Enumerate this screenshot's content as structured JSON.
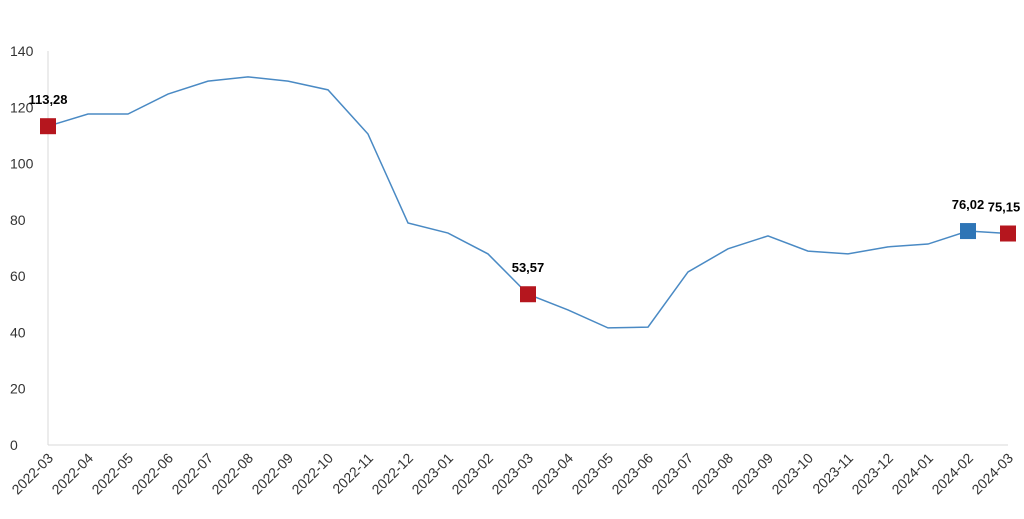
{
  "chart_data": {
    "type": "line",
    "categories": [
      "2022-03",
      "2022-04",
      "2022-05",
      "2022-06",
      "2022-07",
      "2022-08",
      "2022-09",
      "2022-10",
      "2022-11",
      "2022-12",
      "2023-01",
      "2023-02",
      "2023-03",
      "2023-04",
      "2023-05",
      "2023-06",
      "2023-07",
      "2023-08",
      "2023-09",
      "2023-10",
      "2023-11",
      "2023-12",
      "2024-01",
      "2024-02",
      "2024-03"
    ],
    "series": [
      {
        "color": "#4a8ac4",
        "values": [
          113.28,
          117.6,
          117.6,
          124.7,
          129.3,
          130.8,
          129.3,
          126.2,
          110.5,
          78.9,
          75.3,
          67.9,
          53.57,
          48.0,
          41.6,
          41.9,
          61.5,
          69.7,
          74.3,
          68.9,
          67.9,
          70.4,
          71.4,
          76.02,
          75.15
        ],
        "value_labels": [
          "113,28",
          null,
          null,
          null,
          null,
          null,
          null,
          null,
          null,
          null,
          null,
          null,
          "53,57",
          null,
          null,
          null,
          null,
          null,
          null,
          null,
          null,
          null,
          null,
          "76,02",
          "75,15"
        ],
        "marker_colors": [
          "#b5161e",
          null,
          null,
          null,
          null,
          null,
          null,
          null,
          null,
          null,
          null,
          null,
          "#b5161e",
          null,
          null,
          null,
          null,
          null,
          null,
          null,
          null,
          null,
          null,
          "#2e75b6",
          "#b5161e"
        ]
      }
    ],
    "ylim": [
      0,
      140
    ],
    "yticks": [
      0,
      20,
      40,
      60,
      80,
      100,
      120,
      140
    ],
    "grid": false
  }
}
